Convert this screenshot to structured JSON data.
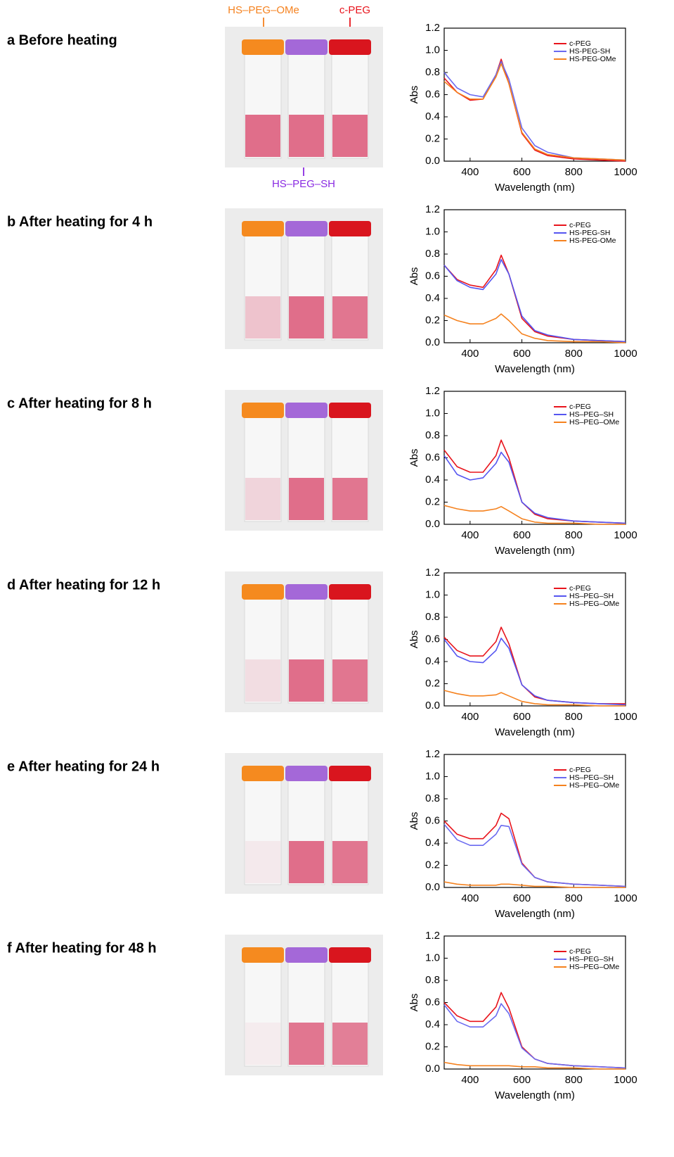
{
  "panels": [
    "a Before heating",
    "b After heating for 4 h",
    "c After heating for 8 h",
    "d After heating for 12 h",
    "e After heating for 24 h",
    "f After heating for 48 h"
  ],
  "photo_labels": {
    "left": "HS–PEG–OMe",
    "right": "c-PEG",
    "middle": "HS–PEG–SH"
  },
  "chart_data": [
    {
      "type": "line",
      "xlabel": "Wavelength (nm)",
      "ylabel": "Abs",
      "xlim": [
        300,
        1000
      ],
      "ylim": [
        0,
        1.2
      ],
      "xticks": [
        400,
        600,
        800,
        1000
      ],
      "yticks": [
        {
          "value": 0,
          "label": "0.0"
        },
        0.2,
        0.4,
        0.6,
        0.8,
        {
          "value": 1,
          "label": "1.0"
        },
        1.2
      ],
      "legend": "upper right",
      "x": [
        300,
        350,
        400,
        450,
        500,
        520,
        550,
        600,
        650,
        700,
        800,
        900,
        1000
      ],
      "series": [
        {
          "name": "c-PEG",
          "color": "#e8141c",
          "values": [
            0.75,
            0.62,
            0.55,
            0.56,
            0.78,
            0.92,
            0.7,
            0.25,
            0.1,
            0.05,
            0.02,
            0.01,
            0.0
          ]
        },
        {
          "name": "HS-PEG-SH",
          "color": "#6a6af0",
          "values": [
            0.8,
            0.66,
            0.6,
            0.58,
            0.78,
            0.9,
            0.74,
            0.3,
            0.14,
            0.08,
            0.03,
            0.02,
            0.01
          ]
        },
        {
          "name": "HS-PEG-OMe",
          "color": "#f5821f",
          "values": [
            0.72,
            0.62,
            0.56,
            0.56,
            0.76,
            0.88,
            0.7,
            0.26,
            0.11,
            0.06,
            0.03,
            0.02,
            0.01
          ]
        }
      ]
    },
    {
      "type": "line",
      "xlabel": "Wavelength (nm)",
      "ylabel": "Abs",
      "xlim": [
        300,
        1000
      ],
      "ylim": [
        0,
        1.2
      ],
      "xticks": [
        400,
        600,
        800,
        1000
      ],
      "yticks": [
        {
          "value": 0,
          "label": "0.0"
        },
        0.2,
        0.4,
        0.6,
        0.8,
        {
          "value": 1,
          "label": "1.0"
        },
        1.2
      ],
      "legend": "upper right",
      "x": [
        300,
        350,
        400,
        450,
        500,
        520,
        550,
        600,
        650,
        700,
        800,
        900,
        1000
      ],
      "series": [
        {
          "name": "c-PEG",
          "color": "#e8141c",
          "values": [
            0.7,
            0.57,
            0.52,
            0.5,
            0.66,
            0.79,
            0.62,
            0.22,
            0.1,
            0.06,
            0.03,
            0.02,
            0.01
          ]
        },
        {
          "name": "HS-PEG-SH",
          "color": "#5555f0",
          "values": [
            0.7,
            0.56,
            0.5,
            0.48,
            0.62,
            0.75,
            0.62,
            0.24,
            0.11,
            0.07,
            0.03,
            0.02,
            0.01
          ]
        },
        {
          "name": "HS-PEG-OMe",
          "color": "#f5821f",
          "values": [
            0.25,
            0.2,
            0.17,
            0.17,
            0.22,
            0.26,
            0.2,
            0.08,
            0.04,
            0.02,
            0.01,
            0.01,
            0.0
          ]
        }
      ]
    },
    {
      "type": "line",
      "xlabel": "Wavelength (nm)",
      "ylabel": "Abs",
      "xlim": [
        300,
        1000
      ],
      "ylim": [
        0,
        1.2
      ],
      "xticks": [
        400,
        600,
        800,
        1000
      ],
      "yticks": [
        {
          "value": 0,
          "label": "0.0"
        },
        0.2,
        0.4,
        0.6,
        0.8,
        {
          "value": 1,
          "label": "1.0"
        },
        1.2
      ],
      "legend": "upper right",
      "x": [
        300,
        350,
        400,
        450,
        500,
        520,
        550,
        600,
        650,
        700,
        800,
        900,
        1000
      ],
      "series": [
        {
          "name": "c-PEG",
          "color": "#e8141c",
          "values": [
            0.67,
            0.52,
            0.47,
            0.47,
            0.62,
            0.76,
            0.6,
            0.2,
            0.09,
            0.05,
            0.03,
            0.02,
            0.01
          ]
        },
        {
          "name": "HS–PEG–SH",
          "color": "#5555f0",
          "values": [
            0.62,
            0.45,
            0.4,
            0.42,
            0.55,
            0.65,
            0.56,
            0.2,
            0.1,
            0.06,
            0.03,
            0.02,
            0.01
          ]
        },
        {
          "name": "HS–PEG–OMe",
          "color": "#f5821f",
          "values": [
            0.17,
            0.14,
            0.12,
            0.12,
            0.14,
            0.16,
            0.12,
            0.05,
            0.02,
            0.01,
            0.01,
            0.0,
            0.0
          ]
        }
      ]
    },
    {
      "type": "line",
      "xlabel": "Wavelength (nm)",
      "ylabel": "Abs",
      "xlim": [
        300,
        1000
      ],
      "ylim": [
        0,
        1.2
      ],
      "xticks": [
        400,
        600,
        800,
        1000
      ],
      "yticks": [
        {
          "value": 0,
          "label": "0.0"
        },
        0.2,
        0.4,
        0.6,
        0.8,
        {
          "value": 1,
          "label": "1.0"
        },
        1.2
      ],
      "legend": "upper right",
      "x": [
        300,
        350,
        400,
        450,
        500,
        520,
        550,
        600,
        650,
        700,
        800,
        900,
        1000
      ],
      "series": [
        {
          "name": "c-PEG",
          "color": "#e8141c",
          "values": [
            0.62,
            0.5,
            0.45,
            0.45,
            0.58,
            0.71,
            0.56,
            0.19,
            0.08,
            0.05,
            0.03,
            0.02,
            0.02
          ]
        },
        {
          "name": "HS–PEG–SH",
          "color": "#5555f0",
          "values": [
            0.6,
            0.45,
            0.4,
            0.39,
            0.5,
            0.61,
            0.52,
            0.19,
            0.09,
            0.05,
            0.03,
            0.02,
            0.01
          ]
        },
        {
          "name": "HS–PEG–OMe",
          "color": "#f5821f",
          "values": [
            0.14,
            0.11,
            0.09,
            0.09,
            0.1,
            0.12,
            0.09,
            0.04,
            0.02,
            0.01,
            0.01,
            0.0,
            0.0
          ]
        }
      ]
    },
    {
      "type": "line",
      "xlabel": "Wavelength (nm)",
      "ylabel": "Abs",
      "xlim": [
        300,
        1000
      ],
      "ylim": [
        0,
        1.2
      ],
      "xticks": [
        400,
        600,
        800,
        1000
      ],
      "yticks": [
        {
          "value": 0,
          "label": "0.0"
        },
        0.2,
        0.4,
        0.6,
        0.8,
        {
          "value": 1,
          "label": "1.0"
        },
        1.2
      ],
      "legend": "upper right",
      "x": [
        300,
        350,
        400,
        450,
        500,
        520,
        550,
        600,
        650,
        700,
        800,
        900,
        1000
      ],
      "series": [
        {
          "name": "c-PEG",
          "color": "#e8141c",
          "values": [
            0.6,
            0.48,
            0.44,
            0.44,
            0.56,
            0.67,
            0.62,
            0.22,
            0.09,
            0.05,
            0.03,
            0.02,
            0.01
          ]
        },
        {
          "name": "HS–PEG–SH",
          "color": "#6a6af0",
          "values": [
            0.57,
            0.43,
            0.38,
            0.38,
            0.48,
            0.56,
            0.55,
            0.21,
            0.09,
            0.05,
            0.03,
            0.02,
            0.01
          ]
        },
        {
          "name": "HS–PEG–OMe",
          "color": "#f5821f",
          "values": [
            0.05,
            0.03,
            0.02,
            0.02,
            0.02,
            0.03,
            0.03,
            0.02,
            0.01,
            0.01,
            0.0,
            0.0,
            0.0
          ]
        }
      ]
    },
    {
      "type": "line",
      "xlabel": "Wavelength (nm)",
      "ylabel": "Abs",
      "xlim": [
        300,
        1000
      ],
      "ylim": [
        0,
        1.2
      ],
      "xticks": [
        400,
        600,
        800,
        1000
      ],
      "yticks": [
        {
          "value": 0,
          "label": "0.0"
        },
        0.2,
        0.4,
        0.6,
        0.8,
        {
          "value": 1,
          "label": "1.0"
        },
        1.2
      ],
      "legend": "upper right",
      "x": [
        300,
        350,
        400,
        450,
        500,
        520,
        550,
        600,
        650,
        700,
        800,
        900,
        1000
      ],
      "series": [
        {
          "name": "c-PEG",
          "color": "#e8141c",
          "values": [
            0.6,
            0.48,
            0.43,
            0.43,
            0.56,
            0.69,
            0.55,
            0.2,
            0.09,
            0.05,
            0.03,
            0.02,
            0.01
          ]
        },
        {
          "name": "HS–PEG–SH",
          "color": "#6a6af0",
          "values": [
            0.58,
            0.43,
            0.38,
            0.38,
            0.48,
            0.59,
            0.5,
            0.19,
            0.09,
            0.05,
            0.03,
            0.02,
            0.01
          ]
        },
        {
          "name": "HS–PEG–OMe",
          "color": "#f5821f",
          "values": [
            0.06,
            0.04,
            0.03,
            0.03,
            0.03,
            0.03,
            0.03,
            0.02,
            0.02,
            0.01,
            0.01,
            0.0,
            0.0
          ]
        }
      ]
    }
  ]
}
